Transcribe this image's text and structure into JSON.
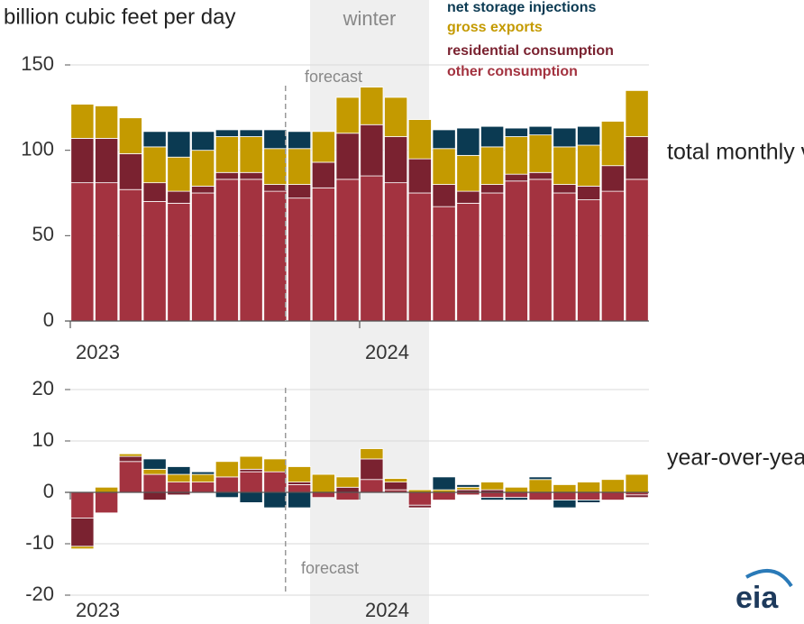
{
  "chart_data": [
    {
      "type": "stacked-bar",
      "title": "billion cubic feet per day",
      "subtitle": "total monthly volumes",
      "annotations": [
        "winter",
        "forecast"
      ],
      "categories": [
        "2023",
        null,
        null,
        null,
        null,
        null,
        null,
        null,
        null,
        null,
        null,
        null,
        "2024",
        null,
        null,
        null,
        null,
        null,
        null,
        null,
        null,
        null,
        null,
        null
      ],
      "ylim": [
        0,
        150
      ],
      "yticks": [
        0,
        50,
        100,
        150
      ],
      "grid": true,
      "series": [
        {
          "name": "net storage injections",
          "color": "#0b3a52",
          "values": [
            0,
            0,
            0,
            9,
            15,
            11,
            4,
            4,
            11,
            10,
            0,
            0,
            0,
            0,
            0,
            11,
            16,
            12,
            5,
            5,
            11,
            11,
            0,
            0
          ]
        },
        {
          "name": "gross exports",
          "color": "#c49a00",
          "values": [
            20,
            19,
            21,
            21,
            20,
            21,
            21,
            21,
            21,
            21,
            18,
            21,
            22,
            23,
            23,
            21,
            21,
            22,
            22,
            22,
            22,
            24,
            26,
            27
          ]
        },
        {
          "name": "residential consumption",
          "color": "#7a2230",
          "values": [
            26,
            26,
            21,
            11,
            7,
            4,
            4,
            4,
            4,
            8,
            15,
            27,
            30,
            27,
            20,
            13,
            7,
            5,
            4,
            4,
            5,
            8,
            15,
            25
          ]
        },
        {
          "name": "other consumption",
          "color": "#a33340",
          "values": [
            81,
            81,
            77,
            70,
            69,
            75,
            83,
            83,
            76,
            72,
            78,
            83,
            85,
            81,
            75,
            67,
            69,
            75,
            82,
            83,
            75,
            71,
            76,
            83
          ]
        }
      ]
    },
    {
      "type": "stacked-bar",
      "subtitle": "year-over-year differences",
      "annotations": [
        "forecast"
      ],
      "categories": [
        "2023",
        null,
        null,
        null,
        null,
        null,
        null,
        null,
        null,
        null,
        null,
        null,
        "2024",
        null,
        null,
        null,
        null,
        null,
        null,
        null,
        null,
        null,
        null,
        null
      ],
      "ylim": [
        -20,
        20
      ],
      "yticks": [
        -20,
        -10,
        0,
        10,
        20
      ],
      "grid": true,
      "series": [
        {
          "color": "#0b3a52",
          "values": [
            0,
            0,
            0,
            2,
            1.5,
            0.5,
            -1,
            -2,
            -3,
            -3,
            0,
            0,
            0,
            0,
            0,
            2.5,
            0.5,
            -0.5,
            -0.5,
            0.5,
            -1.5,
            -0.5,
            0,
            0
          ]
        },
        {
          "color": "#c49a00",
          "values": [
            -0.5,
            1,
            0.5,
            1,
            1.5,
            1.5,
            3,
            2.5,
            2.5,
            3,
            3.5,
            2,
            2,
            0.7,
            0.5,
            0.5,
            0.5,
            1.5,
            1,
            2.5,
            1.5,
            2,
            2.5,
            3.5
          ]
        },
        {
          "color": "#7a2230",
          "values": [
            -5.5,
            0,
            1,
            -1.5,
            -0.5,
            0,
            0,
            0.5,
            0,
            0.5,
            0,
            1,
            4,
            1.5,
            -0.5,
            0,
            0.5,
            0.5,
            0,
            0,
            0,
            0,
            0,
            -0.5
          ]
        },
        {
          "color": "#a33340",
          "values": [
            -5,
            -4,
            6,
            3.5,
            2,
            2,
            3,
            4,
            4,
            1.5,
            -1,
            -1.5,
            2.5,
            0.5,
            -2.5,
            -1.5,
            -0.5,
            -1,
            -1,
            -1.5,
            -1.5,
            -1.5,
            -1.5,
            -0.5
          ]
        }
      ]
    }
  ]
}
